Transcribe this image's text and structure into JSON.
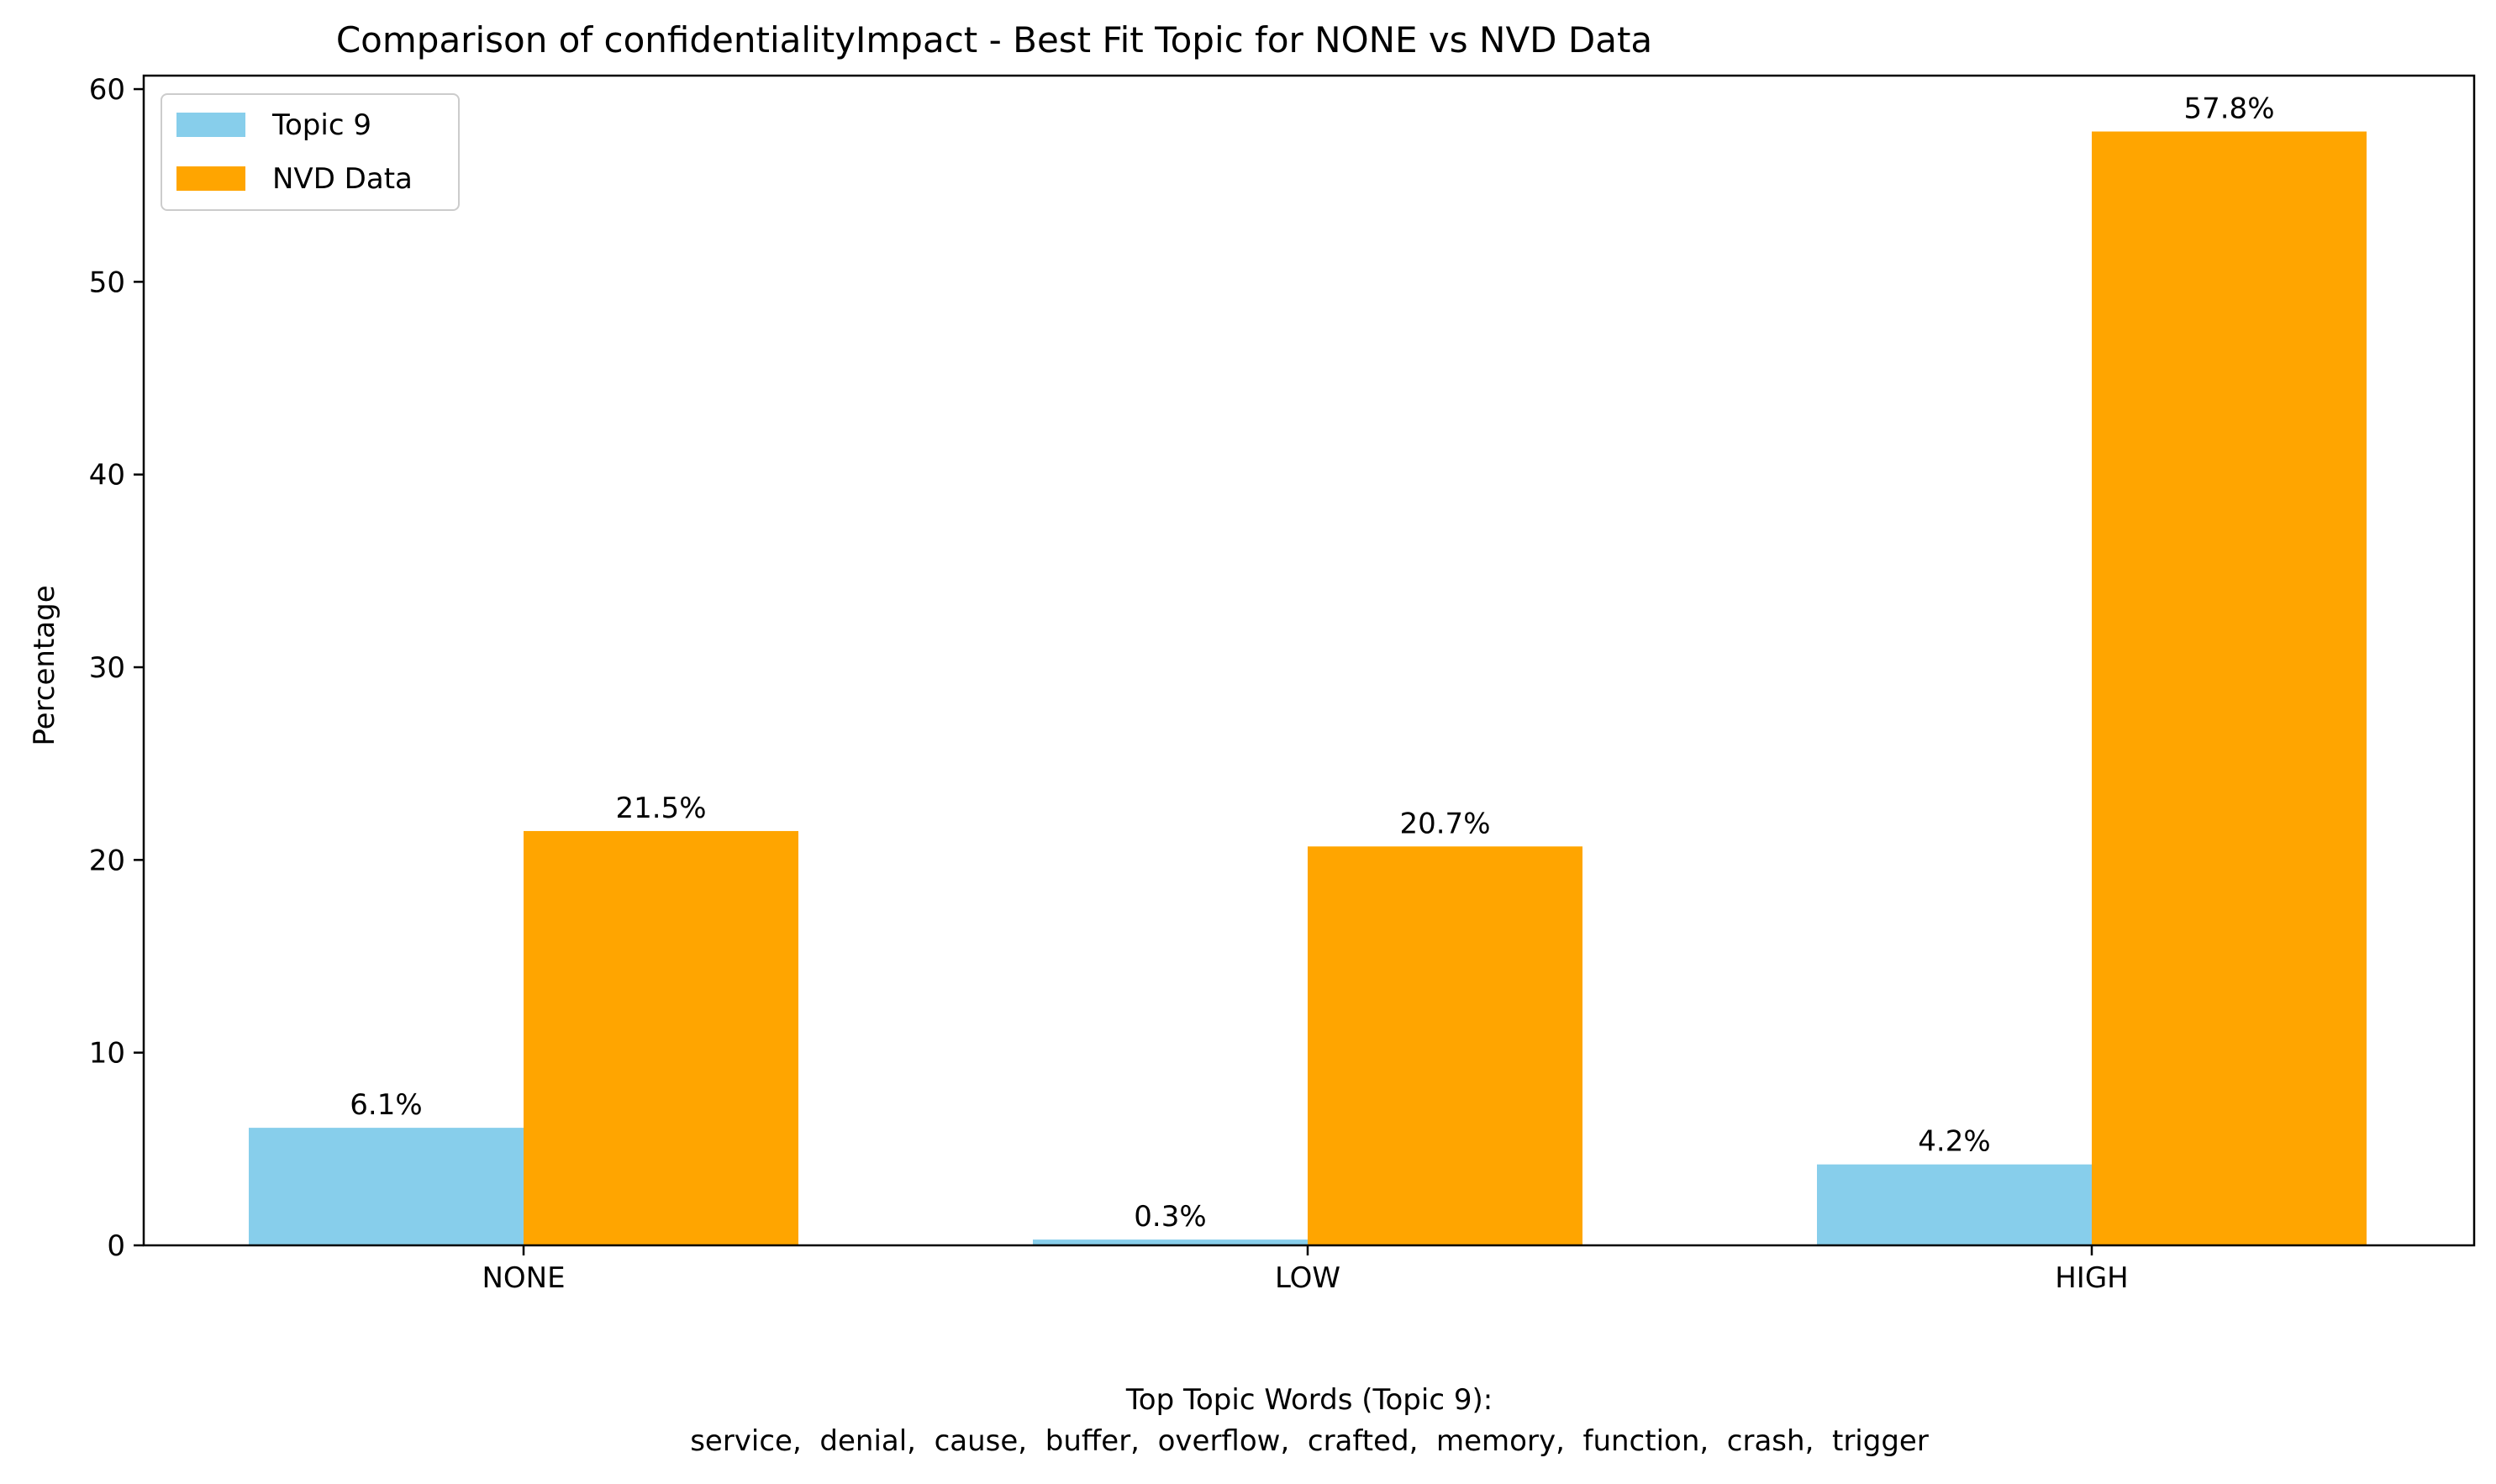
{
  "chart_data": {
    "type": "bar",
    "title": "Comparison of confidentialityImpact - Best Fit Topic for NONE vs NVD Data",
    "ylabel": "Percentage",
    "categories": [
      "NONE",
      "LOW",
      "HIGH"
    ],
    "ylim": [
      0,
      60.7
    ],
    "yticks": [
      0,
      10,
      20,
      30,
      40,
      50,
      60
    ],
    "series": [
      {
        "name": "Topic 9",
        "color": "#87ceeb",
        "values": [
          6.1,
          0.3,
          4.2
        ],
        "labels": [
          "6.1%",
          "0.3%",
          "4.2%"
        ]
      },
      {
        "name": "NVD Data",
        "color": "#ffa500",
        "values": [
          21.5,
          20.7,
          57.8
        ],
        "labels": [
          "21.5%",
          "20.7%",
          "57.8%"
        ]
      }
    ],
    "legend_position": "top-left",
    "grid": false,
    "caption": {
      "line1": "Top Topic Words (Topic 9):",
      "line2": "service,  denial,  cause,  buffer,  overflow,  crafted,  memory,  function,  crash,  trigger"
    }
  }
}
